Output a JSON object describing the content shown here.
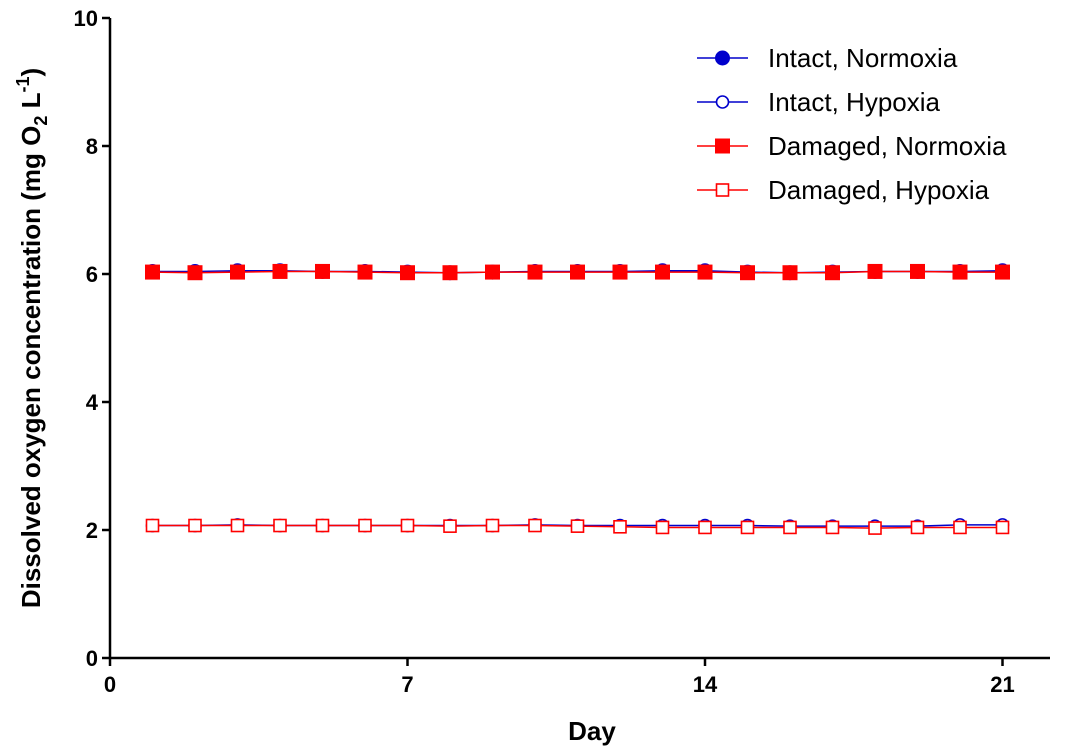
{
  "chart_data": {
    "type": "line",
    "xlabel": "Day",
    "ylabel_parts": [
      "Dissolved oxygen concentration (mg O",
      "2",
      " L",
      "-1",
      ")"
    ],
    "xlim": [
      0,
      22
    ],
    "ylim": [
      0,
      10
    ],
    "xticks": [
      0,
      7,
      14,
      21
    ],
    "yticks": [
      0,
      2,
      4,
      6,
      8,
      10
    ],
    "grid": false,
    "legend_position": "top-right",
    "x": [
      1,
      2,
      3,
      4,
      5,
      6,
      7,
      8,
      9,
      10,
      11,
      12,
      13,
      14,
      15,
      16,
      17,
      18,
      19,
      20,
      21
    ],
    "series": [
      {
        "name": "Intact, Normoxia",
        "color": "#0000cc",
        "marker": "circle-filled",
        "values": [
          6.04,
          6.04,
          6.05,
          6.05,
          6.04,
          6.04,
          6.03,
          6.02,
          6.03,
          6.04,
          6.04,
          6.04,
          6.05,
          6.05,
          6.03,
          6.02,
          6.03,
          6.04,
          6.04,
          6.04,
          6.05
        ]
      },
      {
        "name": "Intact, Hypoxia",
        "color": "#0000cc",
        "marker": "circle-open",
        "values": [
          2.07,
          2.07,
          2.08,
          2.07,
          2.07,
          2.07,
          2.07,
          2.07,
          2.07,
          2.08,
          2.07,
          2.07,
          2.07,
          2.07,
          2.07,
          2.06,
          2.06,
          2.06,
          2.06,
          2.08,
          2.08
        ]
      },
      {
        "name": "Damaged, Normoxia",
        "color": "#ff0000",
        "marker": "square-filled",
        "values": [
          6.03,
          6.02,
          6.03,
          6.04,
          6.04,
          6.03,
          6.02,
          6.02,
          6.03,
          6.03,
          6.03,
          6.03,
          6.03,
          6.03,
          6.02,
          6.02,
          6.02,
          6.04,
          6.04,
          6.03,
          6.03
        ]
      },
      {
        "name": "Damaged, Hypoxia",
        "color": "#ff0000",
        "marker": "square-open",
        "values": [
          2.07,
          2.07,
          2.07,
          2.07,
          2.07,
          2.07,
          2.07,
          2.06,
          2.07,
          2.07,
          2.06,
          2.05,
          2.04,
          2.04,
          2.04,
          2.04,
          2.04,
          2.03,
          2.04,
          2.04,
          2.04
        ]
      }
    ]
  }
}
